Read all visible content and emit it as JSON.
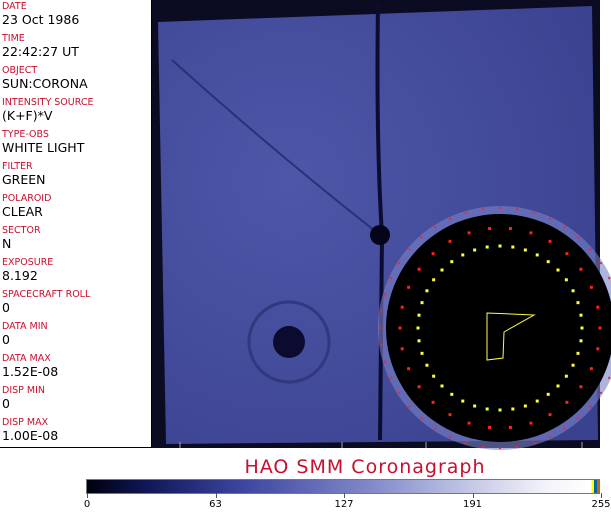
{
  "fields": [
    {
      "label": "DATE",
      "value": "23 Oct 1986"
    },
    {
      "label": "TIME",
      "value": "22:42:27 UT"
    },
    {
      "label": "OBJECT",
      "value": "SUN:CORONA"
    },
    {
      "label": "INTENSITY SOURCE",
      "value": "(K+F)*V"
    },
    {
      "label": "TYPE-OBS",
      "value": "WHITE LIGHT"
    },
    {
      "label": "FILTER",
      "value": "GREEN"
    },
    {
      "label": "POLAROID",
      "value": "CLEAR"
    },
    {
      "label": "SECTOR",
      "value": "N"
    },
    {
      "label": "EXPOSURE",
      "value": "8.192"
    },
    {
      "label": "SPACECRAFT ROLL",
      "value": "0"
    },
    {
      "label": "DATA MIN",
      "value": "0"
    },
    {
      "label": "DATA MAX",
      "value": "1.52E-08"
    },
    {
      "label": "DISP MIN",
      "value": "0"
    },
    {
      "label": "DISP MAX",
      "value": "1.00E-08"
    }
  ],
  "title": "HAO  SMM Coronagraph",
  "colorbar": {
    "ticks": [
      "0",
      "63",
      "127",
      "191",
      "255"
    ]
  },
  "colors": {
    "label": "#c8102e",
    "image_bg": "#0a0a1e",
    "corona": "#4a52a8",
    "occulter": "#000000"
  }
}
